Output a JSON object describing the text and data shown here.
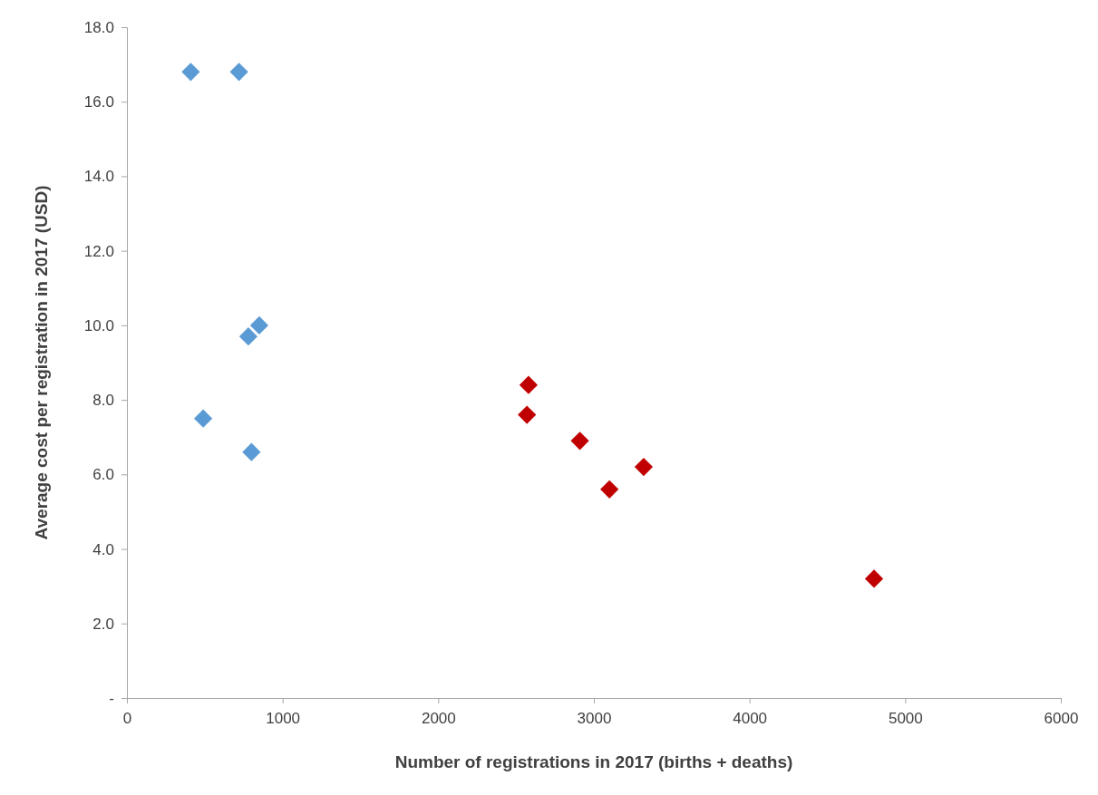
{
  "chart_data": {
    "type": "scatter",
    "xlabel": "Number of registrations in 2017 (births + deaths)",
    "ylabel": "Average cost per registration in 2017 (USD)",
    "marker": "diamond",
    "grid": false,
    "xlim": [
      0,
      6000
    ],
    "xticks": [
      0,
      1000,
      2000,
      3000,
      4000,
      5000,
      6000
    ],
    "ylim": [
      0,
      18
    ],
    "yticks": [
      {
        "value": 0,
        "label": "-"
      },
      {
        "value": 2,
        "label": "2.0"
      },
      {
        "value": 4,
        "label": "4.0"
      },
      {
        "value": 6,
        "label": "6.0"
      },
      {
        "value": 8,
        "label": "8.0"
      },
      {
        "value": 10,
        "label": "10.0"
      },
      {
        "value": 12,
        "label": "12.0"
      },
      {
        "value": 14,
        "label": "14.0"
      },
      {
        "value": 16,
        "label": "16.0"
      },
      {
        "value": 18,
        "label": "18.0"
      }
    ],
    "series": [
      {
        "color": "#5b9bd5",
        "x": [
          410,
          720,
          850,
          780,
          490,
          800
        ],
        "values": [
          16.8,
          16.8,
          10.0,
          9.7,
          7.5,
          6.6
        ]
      },
      {
        "color": "#c00000",
        "x": [
          2580,
          2570,
          2910,
          3100,
          3320,
          4800
        ],
        "values": [
          8.4,
          7.6,
          6.9,
          5.6,
          6.2,
          3.2
        ]
      }
    ]
  }
}
